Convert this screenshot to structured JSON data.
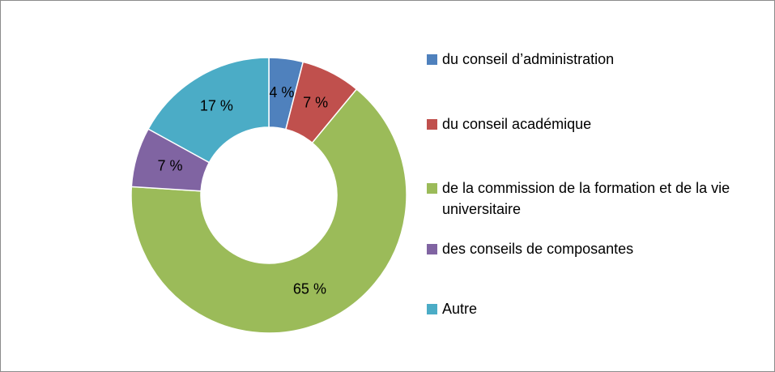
{
  "chart_data": {
    "type": "donut",
    "categories": [
      "du conseil d’administration",
      "du conseil académique",
      "de la commission de la formation et de la vie universitaire",
      "des conseils de composantes",
      "Autre"
    ],
    "values": [
      4,
      7,
      65,
      7,
      17
    ],
    "value_labels": [
      "4 %",
      "7 %",
      "65 %",
      "7 %",
      "17 %"
    ],
    "colors": [
      "#4f81bd",
      "#c0504d",
      "#9bbb59",
      "#8064a2",
      "#4bacc6"
    ],
    "legend": "right"
  }
}
